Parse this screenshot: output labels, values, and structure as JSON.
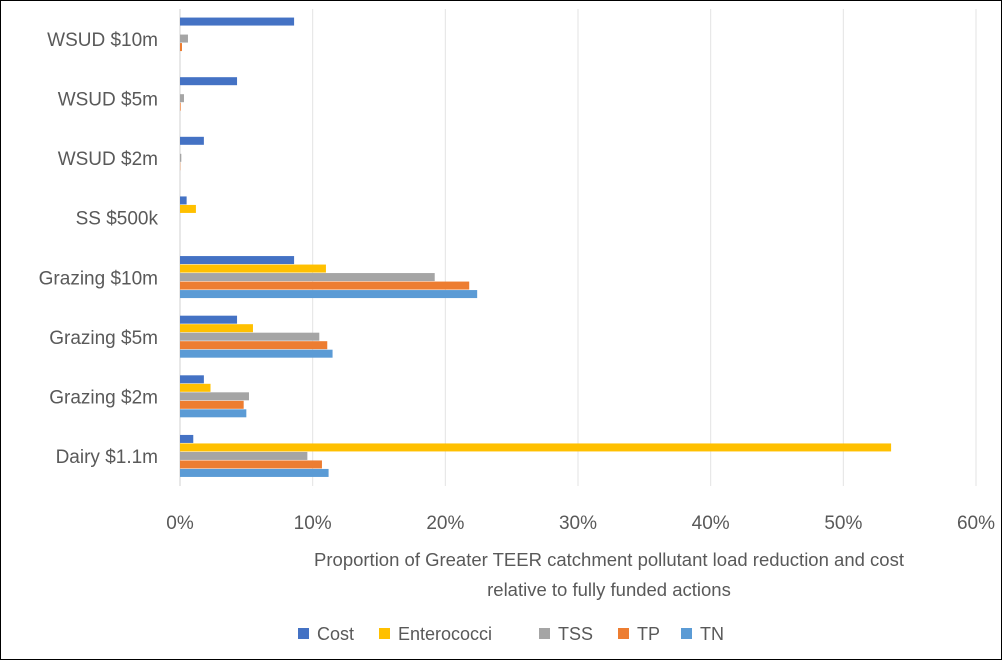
{
  "chart_data": {
    "type": "bar",
    "orientation": "horizontal",
    "categories": [
      "WSUD $10m",
      "WSUD $5m",
      "WSUD $2m",
      "SS $500k",
      "Grazing $10m",
      "Grazing $5m",
      "Grazing $2m",
      "Dairy $1.1m"
    ],
    "series": [
      {
        "name": "Cost",
        "color": "#4472C4",
        "values": [
          8.6,
          4.3,
          1.8,
          0.5,
          8.6,
          4.3,
          1.8,
          1.0
        ]
      },
      {
        "name": "Enterococci",
        "color": "#FFC000",
        "values": [
          0,
          0,
          0,
          1.2,
          11.0,
          5.5,
          2.3,
          53.6
        ]
      },
      {
        "name": "TSS",
        "color": "#A5A5A5",
        "values": [
          0.6,
          0.3,
          0.1,
          0,
          19.2,
          10.5,
          5.2,
          9.6
        ]
      },
      {
        "name": "TP",
        "color": "#ED7D31",
        "values": [
          0.15,
          0.05,
          0.02,
          0,
          21.8,
          11.1,
          4.8,
          10.7
        ]
      },
      {
        "name": "TN",
        "color": "#5B9BD5",
        "values": [
          0,
          0,
          0,
          0,
          22.4,
          11.5,
          5.0,
          11.2
        ]
      }
    ],
    "xlim": [
      0,
      60
    ],
    "xticks": [
      "0%",
      "10%",
      "20%",
      "30%",
      "40%",
      "50%",
      "60%"
    ],
    "xlabel_line1": "Proportion of Greater TEER catchment pollutant load reduction and cost",
    "xlabel_line2": "relative to fully funded actions",
    "grid": "vertical",
    "legend_position": "bottom"
  }
}
